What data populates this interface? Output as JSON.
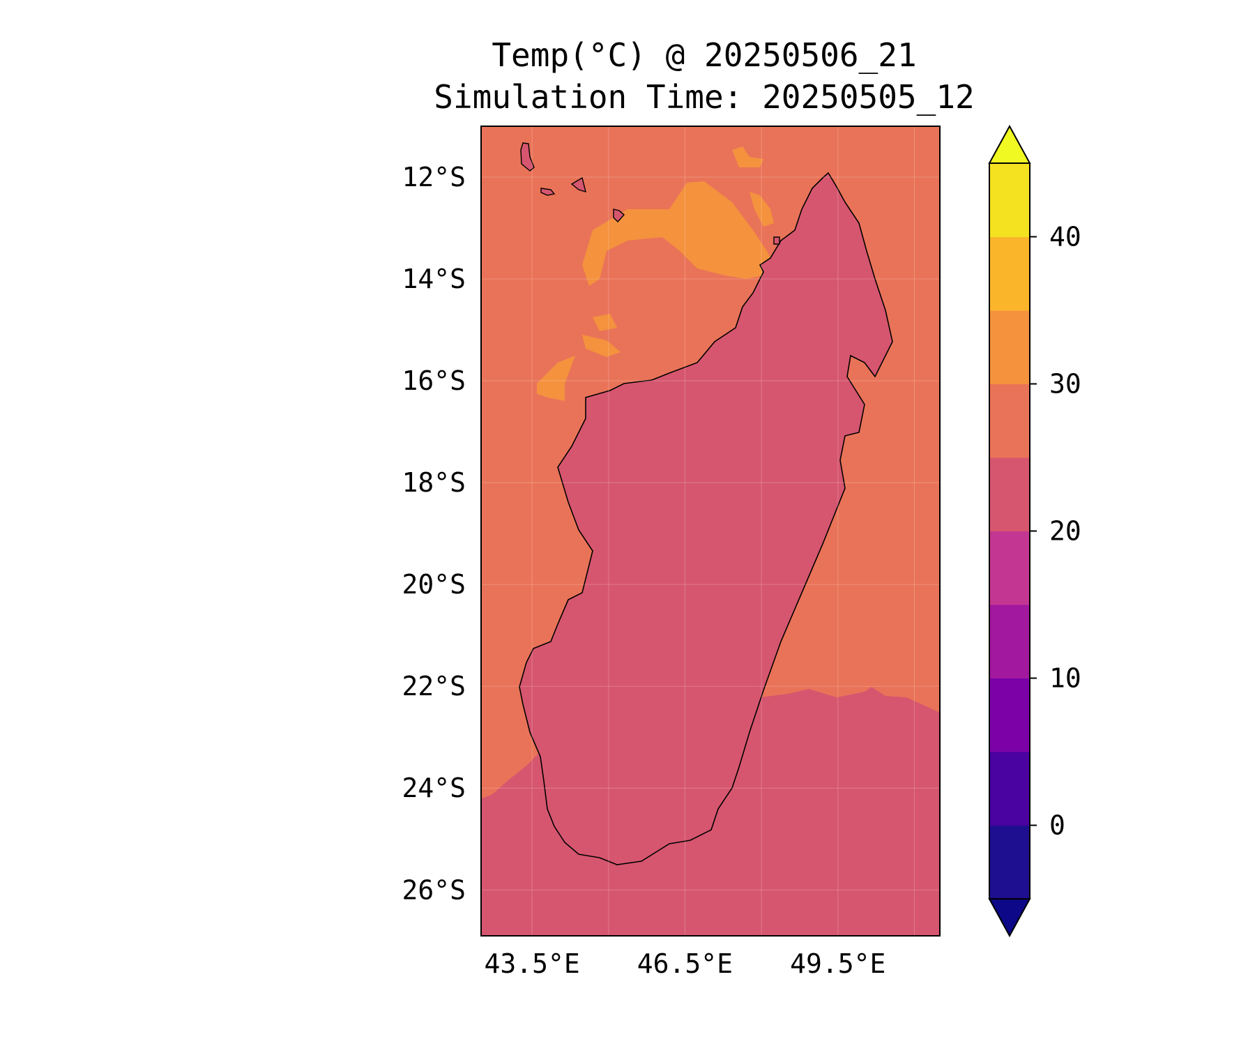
{
  "title": "Temp(°C) @ 20250506_21",
  "subtitle": "Simulation Time: 20250505_12",
  "map": {
    "region_word": "Madagascar",
    "lon_range": [
      42.5,
      51.5
    ],
    "lat_range": [
      -26.9,
      -11.0
    ],
    "lon_ticks": [
      43.5,
      46.5,
      49.5
    ],
    "lon_tick_labels": [
      "43.5°E",
      "46.5°E",
      "49.5°E"
    ],
    "lat_ticks": [
      -12,
      -14,
      -16,
      -18,
      -20,
      -22,
      -24,
      -26
    ],
    "lat_tick_labels": [
      "12°S",
      "14°S",
      "16°S",
      "18°S",
      "20°S",
      "22°S",
      "24°S",
      "26°S"
    ],
    "grid": true,
    "grid_lon": [
      43.5,
      45.0,
      46.5,
      48.0,
      49.5,
      51.0
    ],
    "ocean_north_fill_level": 27.5,
    "ocean_south_fill_level": 22.5
  },
  "colorbar": {
    "label_ticks": [
      0,
      10,
      20,
      30,
      40
    ],
    "tick_labels": [
      "0",
      "10",
      "20",
      "30",
      "40"
    ],
    "extend": "both",
    "levels": [
      -5,
      0,
      5,
      10,
      15,
      20,
      25,
      30,
      35,
      40,
      45
    ],
    "colors": [
      "#1d0f8f",
      "#4a02a0",
      "#7c02a8",
      "#a2189e",
      "#c33691",
      "#d6566f",
      "#e97358",
      "#f4923e",
      "#fbb52a",
      "#f4e220"
    ],
    "under_color": "#0d0887",
    "over_color": "#f0f921"
  },
  "colors": {
    "ocean_north": "#e97358",
    "ocean_south": "#d6566f",
    "warm_sea_patch": "#f4923e",
    "land_lowland": "#d6566f",
    "land_midland": "#c33691",
    "land_highland": "#a2189e",
    "land_peak": "#7c02a8"
  }
}
